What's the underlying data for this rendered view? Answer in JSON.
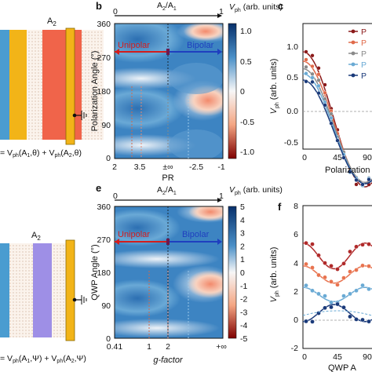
{
  "panel_letters": {
    "b": "b",
    "c": "c",
    "e": "e",
    "f": "f"
  },
  "schematics": {
    "top": {
      "label": "A",
      "sub": "2",
      "equation": "= V",
      "eq_parts": [
        "ph",
        "(A",
        "1",
        ",θ) + V",
        "ph",
        "(A",
        "2",
        ",θ)"
      ]
    },
    "bottom": {
      "label": "A",
      "sub": "2",
      "equation": "= V",
      "eq_parts": [
        "ph",
        "(A",
        "1",
        ",Ψ) + V",
        "ph",
        "(A",
        "2",
        ",Ψ)"
      ]
    }
  },
  "panel_b": {
    "top_axis": {
      "label": "A2/A1",
      "start": "0",
      "end": "1"
    },
    "colorbar_title": "V_ph (arb. units)",
    "colorbar_ticks": [
      "1.0",
      "0.5",
      "0",
      "-0.5",
      "-1.0"
    ],
    "ylabel": "Polarization Angle (°)",
    "yticks": [
      "360",
      "270",
      "180",
      "90",
      "0"
    ],
    "xlabel": "PR",
    "xticks": [
      "2",
      "3.5",
      "±∞",
      "-2.5",
      "-1"
    ],
    "region_left": "Unipolar",
    "region_right": "Bipolar"
  },
  "panel_e": {
    "top_axis": {
      "label": "A2/A1",
      "start": "0",
      "end": "1"
    },
    "colorbar_title": "V_ph (arb. units)",
    "colorbar_ticks": [
      "5",
      "4",
      "3",
      "2",
      "1",
      "0",
      "-1",
      "-2",
      "-3",
      "-4",
      "-5"
    ],
    "ylabel": "QWP Angle (°)",
    "yticks": [
      "360",
      "270",
      "180",
      "90",
      "0"
    ],
    "xlabel": "g-factor",
    "xticks": [
      "0.41",
      "1",
      "2",
      "+∞"
    ],
    "region_left": "Unipolar",
    "region_right": "Bipolar"
  },
  "panel_c": {
    "ylabel": "V_ph (arb. units)",
    "yticks": [
      "1.0",
      "0.5",
      "0.0",
      "-0.5"
    ],
    "xlabel": "Polarization",
    "xticks": [
      "0",
      "45",
      "90"
    ],
    "legend": [
      "P",
      "P",
      "P",
      "P",
      "P"
    ],
    "series_colors": [
      "#8b1a1a",
      "#e06a4a",
      "#8a8a8a",
      "#6aaad4",
      "#1a3a7a"
    ]
  },
  "panel_f": {
    "ylabel": "V_ph (arb. units)",
    "yticks": [
      "8",
      "6",
      "4",
      "2",
      "0",
      "-2"
    ],
    "xlabel": "QWP A",
    "xticks": [
      "0",
      "45",
      "90"
    ],
    "series_colors": [
      "#b02a2a",
      "#e8734f",
      "#6aaad4",
      "#1a3a7a"
    ]
  },
  "colors": {
    "gold": "#f2b418",
    "teal_blue": "#4a9cd0",
    "orange_red": "#f0644a",
    "lavender": "#9e8fe6",
    "unipolar": "#d21d1d",
    "bipolar": "#1f3fbf"
  }
}
